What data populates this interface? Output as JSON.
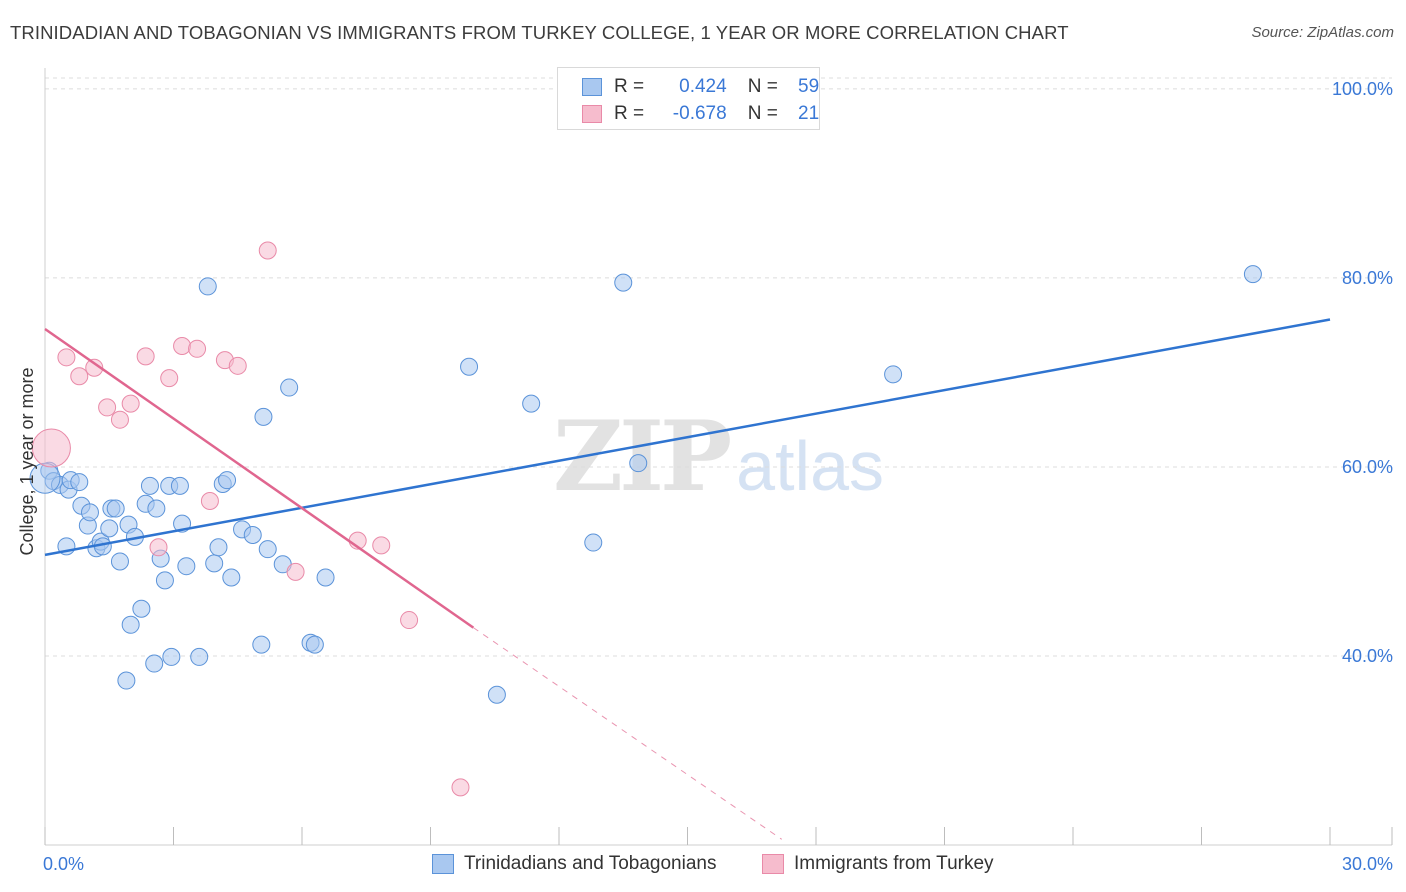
{
  "title": "TRINIDADIAN AND TOBAGONIAN VS IMMIGRANTS FROM TURKEY COLLEGE, 1 YEAR OR MORE CORRELATION CHART",
  "source": "Source: ZipAtlas.com",
  "watermark": {
    "zip": "ZIP",
    "atlas": "atlas"
  },
  "colors": {
    "blue_fill": "#a9c8f0",
    "blue_stroke": "#5b93d9",
    "blue_line": "#2f74d0",
    "pink_fill": "#f6bccd",
    "pink_stroke": "#e98aa8",
    "pink_line": "#e0668f",
    "grid": "#dcdcdc",
    "axis_text": "#3a78d6"
  },
  "legend": {
    "rows": [
      {
        "r_label": "R =",
        "r_value": "0.424",
        "n_label": "N =",
        "n_value": "59"
      },
      {
        "r_label": "R =",
        "r_value": "-0.678",
        "n_label": "N =",
        "n_value": "21"
      }
    ]
  },
  "chart_data": {
    "type": "scatter",
    "title": "TRINIDADIAN AND TOBAGONIAN VS IMMIGRANTS FROM TURKEY COLLEGE, 1 YEAR OR MORE CORRELATION CHART",
    "xlabel": "",
    "ylabel": "College, 1 year or more",
    "xlim": [
      0,
      30
    ],
    "ylim": [
      20,
      102
    ],
    "x_tick_labels": [
      "0.0%",
      "30.0%"
    ],
    "y_ticks": [
      {
        "value": 40,
        "label": "40.0%"
      },
      {
        "value": 60,
        "label": "60.0%"
      },
      {
        "value": 80,
        "label": "80.0%"
      },
      {
        "value": 100,
        "label": "100.0%"
      }
    ],
    "series": [
      {
        "name": "Trinidadians and Tobagonians",
        "color": "blue",
        "trend": {
          "x": [
            0,
            30
          ],
          "y": [
            50.7,
            75.6
          ]
        },
        "points": [
          [
            0.1,
            59.6
          ],
          [
            0.2,
            58.5
          ],
          [
            0.35,
            58.1
          ],
          [
            0.5,
            51.6
          ],
          [
            0.55,
            57.6
          ],
          [
            0.6,
            58.6
          ],
          [
            0.8,
            58.4
          ],
          [
            0.85,
            55.9
          ],
          [
            1.0,
            53.8
          ],
          [
            1.05,
            55.2
          ],
          [
            1.2,
            51.4
          ],
          [
            1.3,
            52.1
          ],
          [
            1.35,
            51.6
          ],
          [
            1.5,
            53.5
          ],
          [
            1.55,
            55.6
          ],
          [
            1.65,
            55.6
          ],
          [
            1.75,
            50.0
          ],
          [
            1.9,
            37.4
          ],
          [
            1.95,
            53.9
          ],
          [
            2.0,
            43.3
          ],
          [
            2.1,
            52.6
          ],
          [
            2.25,
            45.0
          ],
          [
            2.35,
            56.1
          ],
          [
            2.45,
            58.0
          ],
          [
            2.55,
            39.2
          ],
          [
            2.6,
            55.6
          ],
          [
            2.7,
            50.3
          ],
          [
            2.8,
            48.0
          ],
          [
            2.9,
            58.0
          ],
          [
            2.95,
            39.9
          ],
          [
            3.15,
            58.0
          ],
          [
            3.2,
            54.0
          ],
          [
            3.3,
            49.5
          ],
          [
            3.6,
            39.9
          ],
          [
            3.8,
            79.1
          ],
          [
            3.95,
            49.8
          ],
          [
            4.05,
            51.5
          ],
          [
            4.15,
            58.2
          ],
          [
            4.25,
            58.6
          ],
          [
            4.35,
            48.3
          ],
          [
            4.6,
            53.4
          ],
          [
            4.85,
            52.8
          ],
          [
            5.05,
            41.2
          ],
          [
            5.1,
            65.3
          ],
          [
            5.2,
            51.3
          ],
          [
            5.55,
            49.7
          ],
          [
            5.7,
            68.4
          ],
          [
            6.2,
            41.4
          ],
          [
            6.3,
            41.2
          ],
          [
            6.55,
            48.3
          ],
          [
            9.9,
            70.6
          ],
          [
            10.55,
            35.9
          ],
          [
            11.35,
            66.7
          ],
          [
            12.8,
            52.0
          ],
          [
            13.5,
            79.5
          ],
          [
            13.85,
            60.4
          ],
          [
            19.8,
            69.8
          ],
          [
            28.2,
            80.4
          ],
          [
            0.0,
            58.8
          ]
        ]
      },
      {
        "name": "Immigrants from Turkey",
        "color": "pink",
        "trend": {
          "x": [
            0,
            10.0
          ],
          "y": [
            74.6,
            43.0
          ]
        },
        "trend_dashed": {
          "x": [
            10.0,
            17.2
          ],
          "y": [
            43.0,
            20.6
          ]
        },
        "points": [
          [
            0.15,
            62.0
          ],
          [
            0.5,
            71.6
          ],
          [
            0.8,
            69.6
          ],
          [
            1.15,
            70.5
          ],
          [
            1.45,
            66.3
          ],
          [
            1.75,
            65.0
          ],
          [
            2.0,
            66.7
          ],
          [
            2.35,
            71.7
          ],
          [
            2.65,
            51.5
          ],
          [
            2.9,
            69.4
          ],
          [
            3.2,
            72.8
          ],
          [
            3.55,
            72.5
          ],
          [
            3.85,
            56.4
          ],
          [
            4.2,
            71.3
          ],
          [
            4.5,
            70.7
          ],
          [
            5.2,
            82.9
          ],
          [
            5.85,
            48.9
          ],
          [
            7.3,
            52.2
          ],
          [
            7.85,
            51.7
          ],
          [
            8.5,
            43.8
          ],
          [
            9.7,
            26.1
          ]
        ]
      }
    ],
    "legend_position": "bottom"
  }
}
